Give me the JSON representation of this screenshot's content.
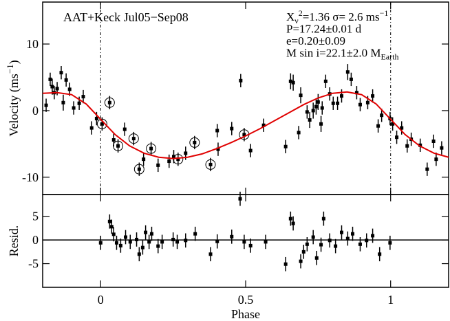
{
  "chart_data": [
    {
      "type": "scatter",
      "title": "AAT+Keck Jul05−Sep08",
      "stats_lines": [
        [
          {
            "t": "X"
          },
          {
            "t": "ν",
            "s": "sub"
          },
          {
            "t": "2",
            "s": "sup"
          },
          {
            "t": "=1.36 σ= 2.6 ms"
          },
          {
            "t": "−1",
            "s": "sup"
          }
        ],
        [
          {
            "t": "P=17.24±0.01 d"
          }
        ],
        [
          {
            "t": "e=0.20±0.09"
          }
        ],
        [
          {
            "t": "M sin i=22.1±2.0 M"
          },
          {
            "t": "Earth",
            "s": "sub"
          }
        ]
      ],
      "ylabel": [
        {
          "t": "Velocity (ms"
        },
        {
          "t": "−1",
          "s": "sup"
        },
        {
          "t": ")"
        }
      ],
      "xlim": [
        -0.2,
        1.2
      ],
      "xticks": [
        0,
        0.5,
        1
      ],
      "ylim": [
        -12.6,
        16.3
      ],
      "yticks": [
        -10,
        0,
        10
      ],
      "vlines": [
        0,
        1
      ],
      "series": [
        {
          "color": "#000000",
          "x": [
            -0.188,
            -0.174,
            -0.167,
            -0.16,
            -0.15,
            -0.136,
            -0.129,
            -0.119,
            -0.107,
            -0.093,
            -0.074,
            -0.06,
            -0.031,
            -0.014,
            0.005,
            0.031,
            0.045,
            0.06,
            0.083,
            0.114,
            0.133,
            0.148,
            0.174,
            0.198,
            0.236,
            0.252,
            0.267,
            0.293,
            0.324,
            0.379,
            0.405,
            0.402,
            0.452,
            0.483,
            0.495,
            0.517,
            0.562,
            0.638,
            0.655,
            0.664,
            0.683,
            0.69,
            0.712,
            0.721,
            0.733,
            0.743,
            0.75,
            0.76,
            0.764,
            0.776,
            0.79,
            0.802,
            0.817,
            0.831,
            0.852,
            0.864,
            0.883,
            0.895,
            0.921,
            0.938,
            0.957,
            0.969,
            0.998,
            1.007,
            1.021,
            1.038,
            1.057,
            1.071,
            1.102,
            1.126,
            1.148,
            1.157,
            1.176
          ],
          "values": [
            0.8,
            4.7,
            3.6,
            2.7,
            3.3,
            5.7,
            1.2,
            4.6,
            3.2,
            0.4,
            1.1,
            2.1,
            -2.6,
            -1.2,
            -2.0,
            1.2,
            -4.4,
            -5.3,
            -2.8,
            -4.2,
            -8.8,
            -7.3,
            -5.7,
            -8.2,
            -7.6,
            -6.9,
            -7.3,
            -6.4,
            -4.8,
            -8.1,
            -5.8,
            -3.0,
            -2.7,
            4.5,
            -3.6,
            -6.0,
            -2.2,
            -5.4,
            4.4,
            4.2,
            -3.3,
            2.3,
            -0.2,
            -1.4,
            0.0,
            0.6,
            1.3,
            -2.0,
            0.4,
            4.4,
            2.5,
            1.1,
            1.1,
            2.2,
            5.8,
            4.7,
            2.7,
            0.9,
            1.2,
            2.2,
            -2.3,
            -0.7,
            -1.2,
            -2.0,
            -4.0,
            -2.6,
            -5.3,
            -4.3,
            -5.2,
            -8.8,
            -4.6,
            -7.3,
            -5.6
          ],
          "errors": [
            1.0,
            1.0,
            1.2,
            1.0,
            1.0,
            1.0,
            1.2,
            1.0,
            1.0,
            1.0,
            1.0,
            1.0,
            1.0,
            1.0,
            1.0,
            1.0,
            1.0,
            1.0,
            1.0,
            1.0,
            1.0,
            1.0,
            1.0,
            1.0,
            1.0,
            1.0,
            1.0,
            1.0,
            1.0,
            1.0,
            1.0,
            1.0,
            1.0,
            1.0,
            1.0,
            1.0,
            1.0,
            1.0,
            1.2,
            1.2,
            1.0,
            1.2,
            1.0,
            1.2,
            1.2,
            1.2,
            1.2,
            1.2,
            1.0,
            1.0,
            1.0,
            1.0,
            1.0,
            1.0,
            1.2,
            1.0,
            1.0,
            1.0,
            1.0,
            1.0,
            1.0,
            1.0,
            1.0,
            1.0,
            1.0,
            1.0,
            1.0,
            1.0,
            1.0,
            1.0,
            1.0,
            1.0,
            1.0
          ],
          "circled": [
            14,
            15,
            17,
            19,
            20,
            22,
            26,
            28,
            29,
            34
          ]
        },
        {
          "color": "#e00000",
          "style": "line",
          "x": [
            -0.2,
            -0.15,
            -0.1,
            -0.05,
            0,
            0.05,
            0.1,
            0.15,
            0.2,
            0.25,
            0.3,
            0.35,
            0.4,
            0.45,
            0.5,
            0.55,
            0.6,
            0.65,
            0.7,
            0.75,
            0.8,
            0.85,
            0.9,
            0.95,
            1.0,
            1.05,
            1.1,
            1.15,
            1.2
          ],
          "values": [
            2.6,
            2.7,
            2.4,
            1.0,
            -1.3,
            -3.6,
            -5.3,
            -6.4,
            -7.0,
            -7.2,
            -7.0,
            -6.5,
            -5.7,
            -4.8,
            -3.8,
            -2.7,
            -1.5,
            -0.3,
            0.9,
            1.9,
            2.6,
            2.8,
            2.4,
            1.0,
            -1.3,
            -3.6,
            -5.3,
            -6.4,
            -7.0
          ]
        }
      ]
    },
    {
      "type": "scatter",
      "ylabel": [
        {
          "t": "Resid."
        }
      ],
      "xlabel": "Phase",
      "xlim": [
        -0.2,
        1.2
      ],
      "xticks": [
        0,
        0.5,
        1
      ],
      "ylim": [
        -10,
        9.6
      ],
      "yticks": [
        -5,
        0,
        5
      ],
      "hlines": [
        0
      ],
      "series": [
        {
          "color": "#000000",
          "x": [
            0,
            0.031,
            0.038,
            0.045,
            0.055,
            0.069,
            0.086,
            0.102,
            0.124,
            0.133,
            0.145,
            0.155,
            0.167,
            0.176,
            0.198,
            0.212,
            0.25,
            0.264,
            0.293,
            0.326,
            0.379,
            0.402,
            0.452,
            0.481,
            0.495,
            0.517,
            0.569,
            0.638,
            0.655,
            0.664,
            0.69,
            0.7,
            0.712,
            0.733,
            0.745,
            0.76,
            0.769,
            0.79,
            0.81,
            0.831,
            0.852,
            0.869,
            0.895,
            0.917,
            0.938,
            0.962,
            0.998
          ],
          "values": [
            -0.6,
            3.9,
            2.8,
            1.2,
            -0.6,
            -1.2,
            0.6,
            -0.4,
            0.1,
            -3.0,
            -1.6,
            1.6,
            -0.4,
            1.3,
            -1.3,
            -0.4,
            0.1,
            -0.4,
            -0.1,
            1.3,
            -3.0,
            -0.3,
            0.7,
            8.7,
            -0.4,
            -1.2,
            -0.4,
            -5.1,
            4.5,
            3.5,
            -4.5,
            -2.5,
            -0.9,
            0.6,
            -3.8,
            -1.0,
            4.5,
            -0.1,
            -1.3,
            1.6,
            0.3,
            1.3,
            -0.9,
            -0.1,
            0.9,
            -3.0,
            -0.6
          ],
          "errors": [
            1.5,
            1.5,
            1.5,
            1.5,
            1.5,
            1.5,
            1.5,
            1.5,
            1.5,
            1.5,
            1.5,
            1.5,
            1.5,
            1.5,
            1.5,
            1.5,
            1.5,
            1.5,
            1.5,
            1.5,
            1.5,
            1.5,
            1.5,
            1.5,
            1.5,
            1.5,
            1.5,
            1.5,
            1.5,
            1.5,
            1.5,
            1.5,
            1.5,
            1.5,
            1.5,
            1.5,
            1.5,
            1.5,
            1.5,
            1.5,
            1.5,
            1.5,
            1.5,
            1.5,
            1.5,
            1.5,
            1.5
          ]
        }
      ]
    }
  ]
}
